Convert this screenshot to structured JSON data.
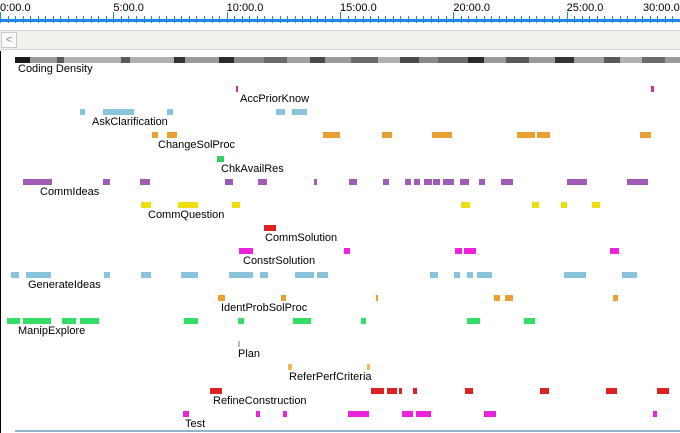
{
  "timeline": {
    "max_seconds": 1800,
    "tick_labels": [
      "0:00.0",
      "5:00.0",
      "10:00.0",
      "15:00.0",
      "20:00.0",
      "25:00.0",
      "30:00.0"
    ],
    "tick_seconds": [
      0,
      300,
      600,
      900,
      1200,
      1500,
      1800
    ],
    "ruler_color": "#1e88e5"
  },
  "scrollbar": {
    "left_arrow": "<"
  },
  "density": {
    "label": "Coding Density",
    "blocks": [
      [
        10,
        40,
        "#9a9a9a"
      ],
      [
        40,
        80,
        "#1a1a1a"
      ],
      [
        80,
        150,
        "#9a9a9a"
      ],
      [
        150,
        170,
        "#5a5a5a"
      ],
      [
        170,
        320,
        "#b0b0b0"
      ],
      [
        320,
        345,
        "#5a5a5a"
      ],
      [
        345,
        460,
        "#b0b0b0"
      ],
      [
        460,
        490,
        "#333333"
      ],
      [
        490,
        580,
        "#9a9a9a"
      ],
      [
        580,
        620,
        "#2a2a2a"
      ],
      [
        620,
        700,
        "#8a8a8a"
      ],
      [
        700,
        760,
        "#6a6a6a"
      ],
      [
        760,
        820,
        "#a0a0a0"
      ],
      [
        820,
        860,
        "#4a4a4a"
      ],
      [
        860,
        930,
        "#9a9a9a"
      ],
      [
        930,
        1000,
        "#6a6a6a"
      ],
      [
        1000,
        1060,
        "#b0b0b0"
      ],
      [
        1060,
        1110,
        "#4a4a4a"
      ],
      [
        1110,
        1160,
        "#8a8a8a"
      ],
      [
        1160,
        1240,
        "#6a6a6a"
      ],
      [
        1240,
        1280,
        "#2a2a2a"
      ],
      [
        1280,
        1340,
        "#9a9a9a"
      ],
      [
        1340,
        1400,
        "#5a5a5a"
      ],
      [
        1400,
        1470,
        "#9a9a9a"
      ],
      [
        1470,
        1520,
        "#333333"
      ],
      [
        1520,
        1600,
        "#a0a0a0"
      ],
      [
        1600,
        1640,
        "#5a5a5a"
      ],
      [
        1640,
        1700,
        "#b0b0b0"
      ],
      [
        1700,
        1760,
        "#6a6a6a"
      ],
      [
        1760,
        1800,
        "#9a9a9a"
      ]
    ]
  },
  "codes": [
    {
      "label": "AccPriorKnow",
      "color": "#cc3399",
      "segments": [
        [
          624,
          630
        ],
        [
          1723,
          1732
        ]
      ]
    },
    {
      "label": "AskClarification",
      "color": "#89c4dc",
      "segments": [
        [
          212,
          226
        ],
        [
          273,
          354
        ],
        [
          441,
          458
        ],
        [
          730,
          754
        ],
        [
          774,
          812
        ]
      ]
    },
    {
      "label": "ChangeSolProc",
      "color": "#e8a030",
      "segments": [
        [
          403,
          417
        ],
        [
          442,
          469
        ],
        [
          854,
          900
        ],
        [
          1011,
          1037
        ],
        [
          1143,
          1197
        ],
        [
          1369,
          1415
        ],
        [
          1422,
          1457
        ],
        [
          1693,
          1722
        ]
      ]
    },
    {
      "label": "ChkAvailRes",
      "color": "#33cc66",
      "segments": [
        [
          575,
          594
        ]
      ]
    },
    {
      "label": "CommIdeas",
      "color": "#a05ab8",
      "segments": [
        [
          62,
          138
        ],
        [
          273,
          292
        ],
        [
          370,
          398
        ],
        [
          596,
          617
        ],
        [
          684,
          706
        ],
        [
          831,
          840
        ],
        [
          925,
          945
        ],
        [
          1013,
          1030
        ],
        [
          1073,
          1087
        ],
        [
          1097,
          1112
        ],
        [
          1123,
          1144
        ],
        [
          1147,
          1166
        ],
        [
          1173,
          1202
        ],
        [
          1218,
          1242
        ],
        [
          1268,
          1283
        ],
        [
          1326,
          1358
        ],
        [
          1502,
          1554
        ],
        [
          1661,
          1715
        ]
      ]
    },
    {
      "label": "CommQuestion",
      "color": "#eedd11",
      "segments": [
        [
          373,
          401
        ],
        [
          472,
          523
        ],
        [
          615,
          635
        ],
        [
          1220,
          1243
        ],
        [
          1409,
          1427
        ],
        [
          1484,
          1500
        ],
        [
          1568,
          1587
        ]
      ]
    },
    {
      "label": "CommSolution",
      "color": "#dd2222",
      "segments": [
        [
          699,
          731
        ]
      ]
    },
    {
      "label": "ConstrSolution",
      "color": "#ee22dd",
      "segments": [
        [
          632,
          670
        ],
        [
          910,
          927
        ],
        [
          1205,
          1223
        ],
        [
          1227,
          1261
        ],
        [
          1614,
          1638
        ]
      ]
    },
    {
      "label": "GenerateIdeas",
      "color": "#89c4dc",
      "segments": [
        [
          29,
          51
        ],
        [
          69,
          136
        ],
        [
          275,
          292
        ],
        [
          374,
          401
        ],
        [
          480,
          524
        ],
        [
          606,
          671
        ],
        [
          687,
          709
        ],
        [
          782,
          831
        ],
        [
          840,
          869
        ],
        [
          1138,
          1160
        ],
        [
          1202,
          1218
        ],
        [
          1237,
          1252
        ],
        [
          1262,
          1302
        ],
        [
          1493,
          1550
        ],
        [
          1647,
          1687
        ]
      ]
    },
    {
      "label": "IdentProbSolProc",
      "color": "#e8a030",
      "segments": [
        [
          577,
          596
        ],
        [
          744,
          756
        ],
        [
          996,
          1000
        ],
        [
          1308,
          1323
        ],
        [
          1337,
          1357
        ],
        [
          1622,
          1636
        ]
      ]
    },
    {
      "label": "ManipExplore",
      "color": "#33dd66",
      "segments": [
        [
          18,
          54
        ],
        [
          62,
          136
        ],
        [
          165,
          202
        ],
        [
          212,
          262
        ],
        [
          486,
          523
        ],
        [
          630,
          645
        ],
        [
          775,
          822
        ],
        [
          956,
          969
        ],
        [
          1237,
          1270
        ],
        [
          1386,
          1415
        ]
      ]
    },
    {
      "label": "Plan",
      "color": "#bbbbbb",
      "segments": [
        [
          629,
          633
        ]
      ]
    },
    {
      "label": "ReferPerfCriteria",
      "color": "#eebb55",
      "segments": [
        [
          762,
          772
        ],
        [
          971,
          980
        ]
      ]
    },
    {
      "label": "RefineConstruction",
      "color": "#dd2222",
      "segments": [
        [
          556,
          588
        ],
        [
          981,
          1017
        ],
        [
          1024,
          1052
        ],
        [
          1057,
          1064
        ],
        [
          1093,
          1104
        ],
        [
          1231,
          1252
        ],
        [
          1429,
          1452
        ],
        [
          1604,
          1633
        ],
        [
          1738,
          1772
        ]
      ]
    },
    {
      "label": "Test",
      "color": "#ee22dd",
      "segments": [
        [
          484,
          500
        ],
        [
          678,
          689
        ],
        [
          748,
          759
        ],
        [
          920,
          977
        ],
        [
          1064,
          1092
        ],
        [
          1102,
          1141
        ],
        [
          1281,
          1314
        ],
        [
          1729,
          1740
        ]
      ]
    }
  ]
}
